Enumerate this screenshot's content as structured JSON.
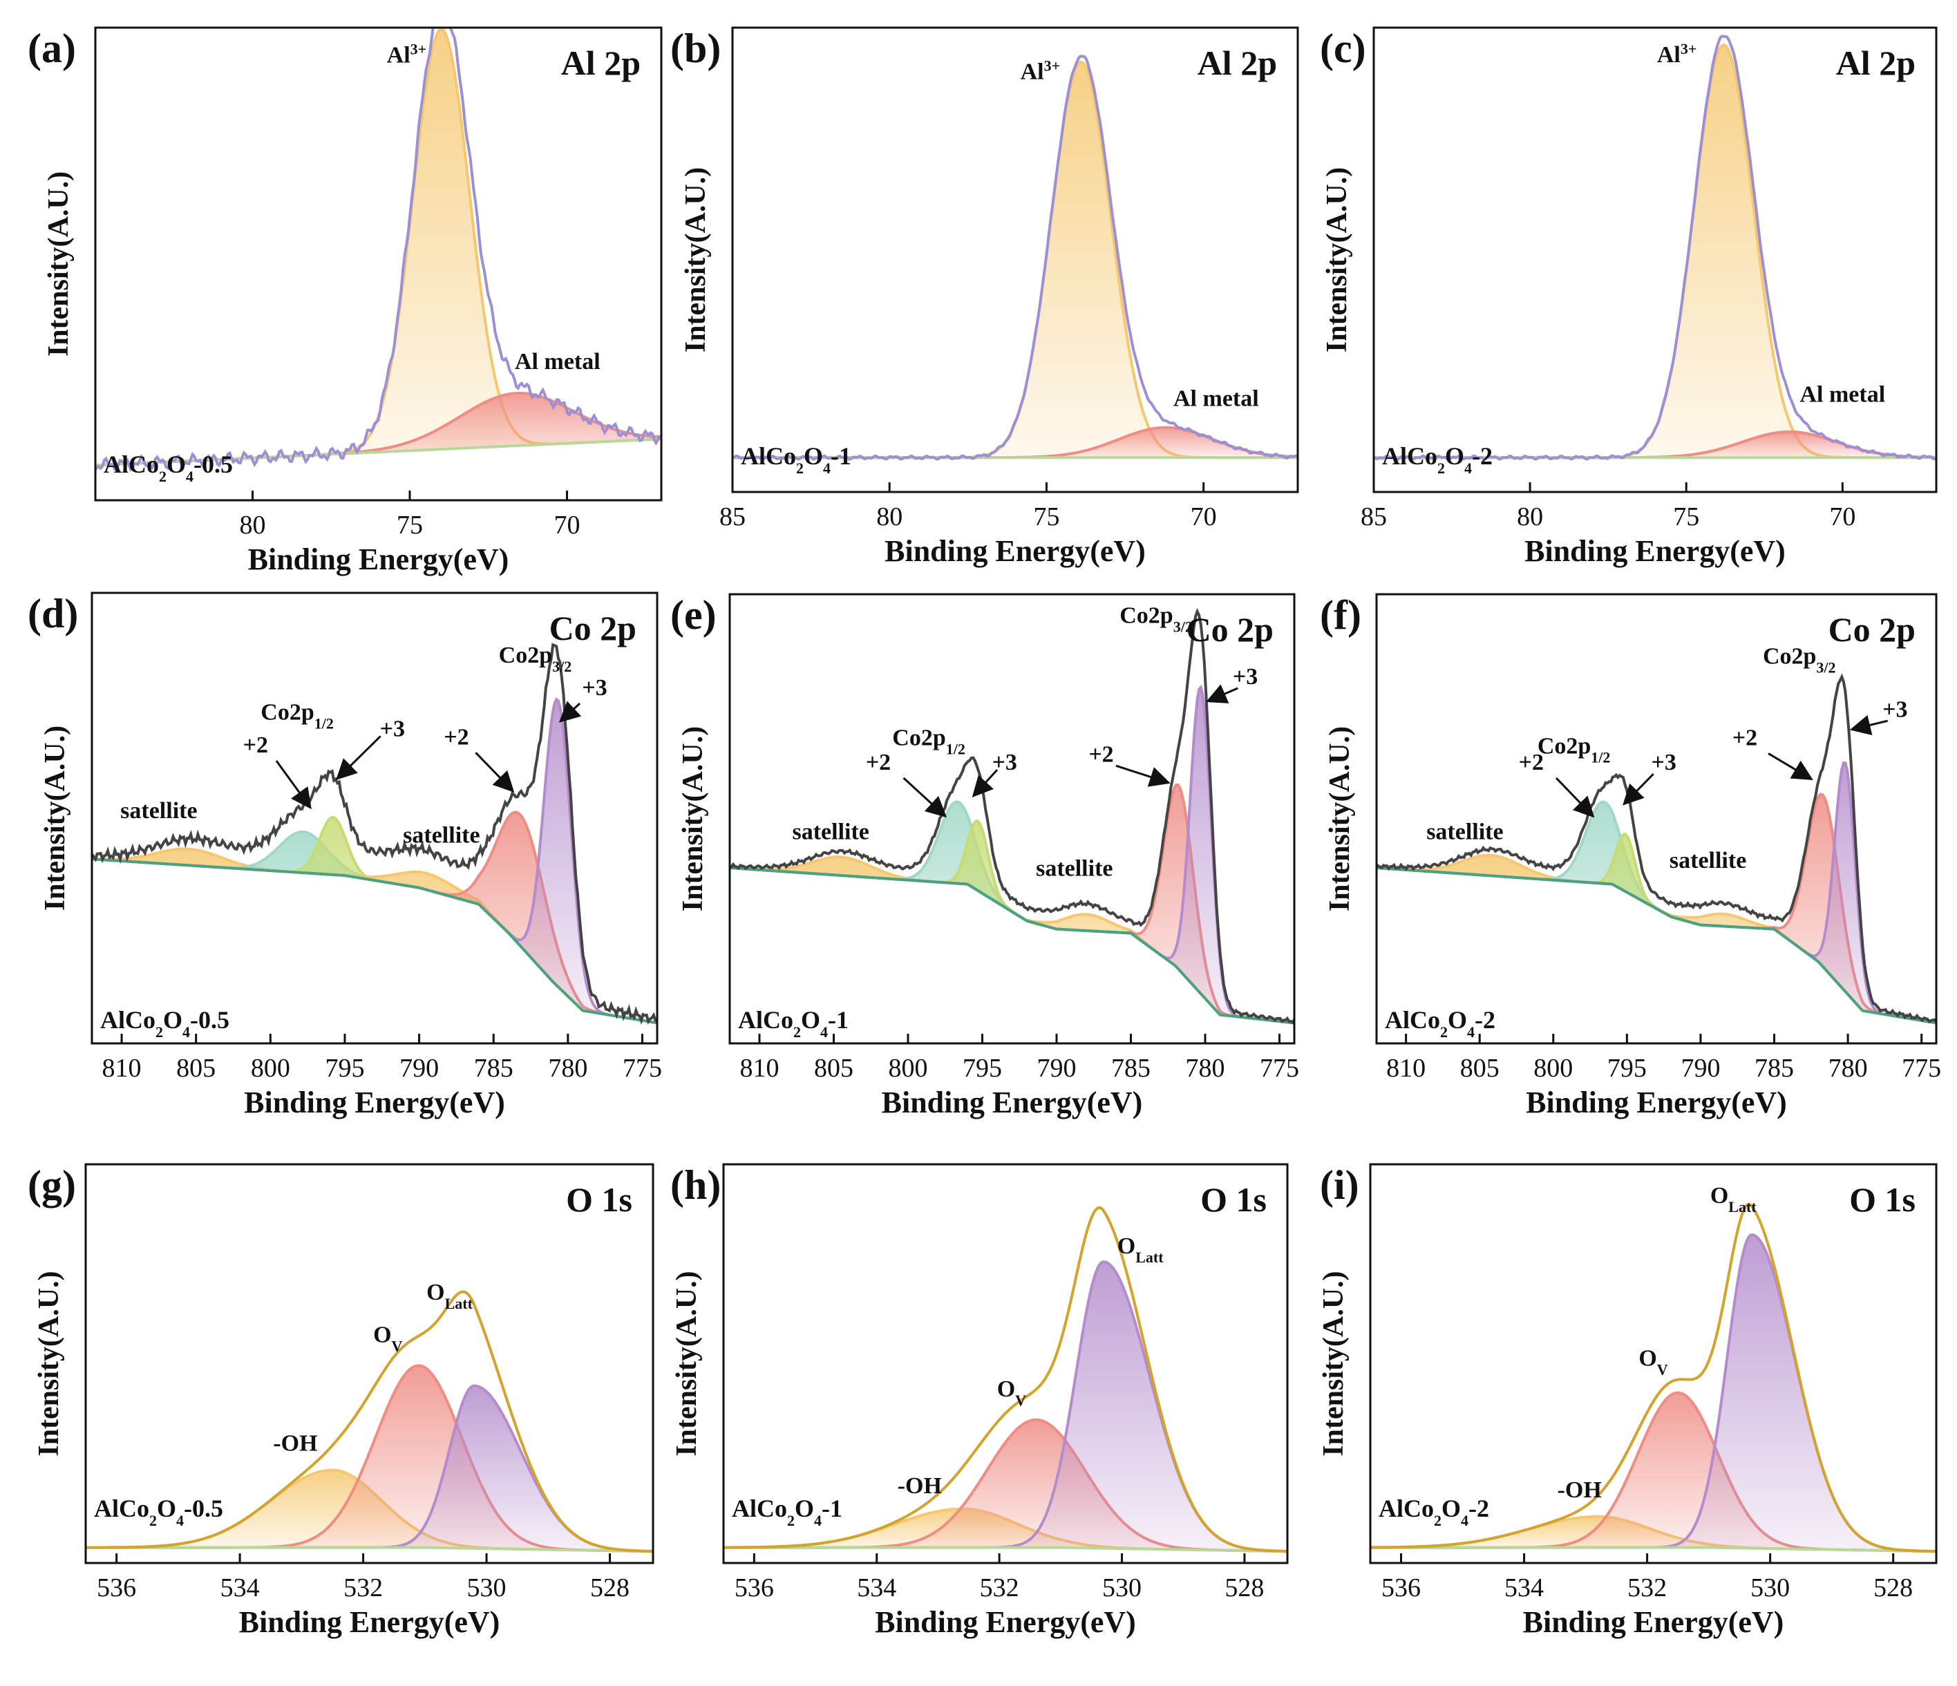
{
  "chart_data": [
    {
      "type": "area",
      "panel": "(a)",
      "title": "Al 2p",
      "sample": "AlCo2O4-0.5",
      "xlabel": "Binding Energy(eV)",
      "ylabel": "Intensity(A.U.)",
      "xlim": [
        85,
        67
      ],
      "ylim": [
        -0.08,
        1.0
      ],
      "xticks": [
        80,
        75,
        70
      ],
      "tick_labels": [
        "80",
        "75",
        "70"
      ],
      "baseline": [
        [
          85,
          0.0
        ],
        [
          67,
          0.06
        ]
      ],
      "components": [
        {
          "name": "Al3+",
          "center": 74.0,
          "height": 0.96,
          "width": 0.9,
          "color": "#f5c870"
        },
        {
          "name": "Al metal",
          "center": 71.6,
          "height": 0.12,
          "width": 1.8,
          "color": "#ef8c84"
        }
      ],
      "envelope_color": "#9d8fd6",
      "noise": 0.015,
      "annotations": [
        {
          "text": "Al",
          "sup": "3+",
          "x": 75.1,
          "y": 0.92
        },
        {
          "text": "Al metal",
          "sub": "",
          "x": 70.3,
          "y": 0.22
        }
      ]
    },
    {
      "type": "area",
      "panel": "(b)",
      "title": "Al 2p",
      "sample": "AlCo2O4-1",
      "xlabel": "Binding Energy(eV)",
      "ylabel": "Intensity(A.U.)",
      "xlim": [
        85,
        67
      ],
      "ylim": [
        -0.08,
        1.0
      ],
      "xticks": [
        85,
        80,
        75,
        70
      ],
      "tick_labels": [
        "85",
        "80",
        "75",
        "70"
      ],
      "baseline": [
        [
          85,
          0.0
        ],
        [
          67,
          0.0
        ]
      ],
      "components": [
        {
          "name": "Al3+",
          "center": 73.9,
          "height": 0.92,
          "width": 0.95,
          "color": "#f5c870"
        },
        {
          "name": "Al metal",
          "center": 71.2,
          "height": 0.07,
          "width": 1.5,
          "color": "#ef8c84"
        }
      ],
      "envelope_color": "#9d8fd6",
      "noise": 0.004,
      "annotations": [
        {
          "text": "Al",
          "sup": "3+",
          "x": 75.2,
          "y": 0.88
        },
        {
          "text": "Al metal",
          "sub": "",
          "x": 69.6,
          "y": 0.12
        }
      ]
    },
    {
      "type": "area",
      "panel": "(c)",
      "title": "Al 2p",
      "sample": "AlCo2O4-2",
      "xlabel": "Binding Energy(eV)",
      "ylabel": "Intensity(A.U.)",
      "xlim": [
        85,
        67
      ],
      "ylim": [
        -0.08,
        1.0
      ],
      "xticks": [
        85,
        80,
        75,
        70
      ],
      "tick_labels": [
        "85",
        "80",
        "75",
        "70"
      ],
      "baseline": [
        [
          85,
          0.0
        ],
        [
          67,
          0.0
        ]
      ],
      "components": [
        {
          "name": "Al3+",
          "center": 73.8,
          "height": 0.96,
          "width": 0.95,
          "color": "#f5c870"
        },
        {
          "name": "Al metal",
          "center": 71.7,
          "height": 0.06,
          "width": 1.5,
          "color": "#ef8c84"
        }
      ],
      "envelope_color": "#9d8fd6",
      "noise": 0.004,
      "annotations": [
        {
          "text": "Al",
          "sup": "3+",
          "x": 75.3,
          "y": 0.92
        },
        {
          "text": "Al metal",
          "sub": "",
          "x": 70.0,
          "y": 0.13
        }
      ]
    },
    {
      "type": "area",
      "panel": "(d)",
      "title": "Co 2p",
      "sample": "AlCo2O4-0.5",
      "xlabel": "Binding Energy(eV)",
      "ylabel": "Intensity(A.U.)",
      "xlim": [
        812,
        774
      ],
      "ylim": [
        -0.05,
        1.05
      ],
      "xticks": [
        810,
        805,
        800,
        795,
        790,
        785,
        780,
        775
      ],
      "tick_labels": [
        "810",
        "805",
        "800",
        "795",
        "790",
        "785",
        "780",
        "775"
      ],
      "baseline": [
        [
          812,
          0.4
        ],
        [
          795,
          0.36
        ],
        [
          790,
          0.33
        ],
        [
          786,
          0.29
        ],
        [
          784,
          0.22
        ],
        [
          781,
          0.1
        ],
        [
          779,
          0.03
        ],
        [
          774,
          0.0
        ]
      ],
      "components": [
        {
          "name": "satellite",
          "center": 805.5,
          "height": 0.04,
          "width": 2.2,
          "color": "#f5c870"
        },
        {
          "name": "+2",
          "center": 797.8,
          "height": 0.1,
          "width": 1.6,
          "color": "#9fd8c8"
        },
        {
          "name": "+3",
          "center": 795.8,
          "height": 0.14,
          "width": 0.9,
          "color": "#c6dc72"
        },
        {
          "name": "satellite",
          "center": 789.5,
          "height": 0.04,
          "width": 2.0,
          "color": "#f5c870"
        },
        {
          "name": "+2",
          "center": 783.2,
          "height": 0.32,
          "width": 1.6,
          "color": "#ef8c84"
        },
        {
          "name": "+3",
          "center": 780.7,
          "height": 0.7,
          "width": 0.9,
          "color": "#b48ccc"
        }
      ],
      "envelope_color": "#444444",
      "envelope_lift": 0.06,
      "noise": 0.012,
      "annotations": [
        {
          "text": "satellite",
          "x": 807.5,
          "y": 0.5
        },
        {
          "text": "+2",
          "x": 801.0,
          "y": 0.66
        },
        {
          "text": "Co2p",
          "sub": "1/2",
          "x": 798.2,
          "y": 0.74
        },
        {
          "text": "+3",
          "x": 791.8,
          "y": 0.7
        },
        {
          "text": "satellite",
          "x": 788.5,
          "y": 0.44
        },
        {
          "text": "+2",
          "x": 787.5,
          "y": 0.68
        },
        {
          "text": "Co2p",
          "sub": "3/2",
          "x": 782.2,
          "y": 0.88
        },
        {
          "text": "+3",
          "x": 778.2,
          "y": 0.8
        }
      ],
      "arrows": [
        [
          799.6,
          0.64,
          797.4,
          0.53
        ],
        [
          792.6,
          0.7,
          795.4,
          0.6
        ],
        [
          786.2,
          0.66,
          783.8,
          0.57
        ],
        [
          779.2,
          0.78,
          780.4,
          0.74
        ]
      ]
    },
    {
      "type": "area",
      "panel": "(e)",
      "title": "Co 2p",
      "sample": "AlCo2O4-1",
      "xlabel": "Binding Energy(eV)",
      "ylabel": "Intensity(A.U.)",
      "xlim": [
        812,
        774
      ],
      "ylim": [
        -0.05,
        1.05
      ],
      "xticks": [
        810,
        805,
        800,
        795,
        790,
        785,
        780,
        775
      ],
      "tick_labels": [
        "810",
        "805",
        "800",
        "795",
        "790",
        "785",
        "780",
        "775"
      ],
      "baseline": [
        [
          812,
          0.38
        ],
        [
          796,
          0.34
        ],
        [
          792,
          0.25
        ],
        [
          790,
          0.23
        ],
        [
          785,
          0.22
        ],
        [
          782,
          0.14
        ],
        [
          779,
          0.02
        ],
        [
          774,
          0.0
        ]
      ],
      "components": [
        {
          "name": "satellite",
          "center": 804.5,
          "height": 0.045,
          "width": 2.0,
          "color": "#f5c870"
        },
        {
          "name": "+2",
          "center": 796.7,
          "height": 0.2,
          "width": 1.2,
          "color": "#9fd8c8"
        },
        {
          "name": "+3",
          "center": 795.3,
          "height": 0.17,
          "width": 0.7,
          "color": "#c6dc72"
        },
        {
          "name": "satellite",
          "center": 788.0,
          "height": 0.04,
          "width": 1.6,
          "color": "#f5c870"
        },
        {
          "name": "+2",
          "center": 781.8,
          "height": 0.45,
          "width": 1.0,
          "color": "#ef8c84"
        },
        {
          "name": "+3",
          "center": 780.3,
          "height": 0.75,
          "width": 0.7,
          "color": "#b48ccc"
        }
      ],
      "envelope_color": "#444444",
      "envelope_lift": 0.03,
      "noise": 0.005,
      "annotations": [
        {
          "text": "satellite",
          "x": 805.2,
          "y": 0.45
        },
        {
          "text": "+2",
          "x": 802.0,
          "y": 0.62
        },
        {
          "text": "Co2p",
          "sub": "1/2",
          "x": 798.6,
          "y": 0.68
        },
        {
          "text": "+3",
          "x": 793.5,
          "y": 0.62
        },
        {
          "text": "satellite",
          "x": 788.8,
          "y": 0.36
        },
        {
          "text": "+2",
          "x": 787.0,
          "y": 0.64
        },
        {
          "text": "Co2p",
          "sub": "3/2",
          "x": 783.3,
          "y": 0.98
        },
        {
          "text": "+3",
          "x": 777.3,
          "y": 0.83
        }
      ],
      "arrows": [
        [
          800.3,
          0.6,
          797.6,
          0.51
        ],
        [
          794.0,
          0.62,
          795.5,
          0.56
        ],
        [
          786.0,
          0.63,
          782.6,
          0.59
        ],
        [
          777.8,
          0.82,
          779.7,
          0.79
        ]
      ]
    },
    {
      "type": "area",
      "panel": "(f)",
      "title": "Co 2p",
      "sample": "AlCo2O4-2",
      "xlabel": "Binding Energy(eV)",
      "ylabel": "Intensity(A.U.)",
      "xlim": [
        812,
        774
      ],
      "ylim": [
        -0.05,
        1.05
      ],
      "xticks": [
        810,
        805,
        800,
        795,
        790,
        785,
        780,
        775
      ],
      "tick_labels": [
        "810",
        "805",
        "800",
        "795",
        "790",
        "785",
        "780",
        "775"
      ],
      "baseline": [
        [
          812,
          0.38
        ],
        [
          796,
          0.34
        ],
        [
          792,
          0.26
        ],
        [
          790,
          0.24
        ],
        [
          785,
          0.23
        ],
        [
          782,
          0.15
        ],
        [
          779,
          0.03
        ],
        [
          774,
          0.0
        ]
      ],
      "components": [
        {
          "name": "satellite",
          "center": 804.2,
          "height": 0.05,
          "width": 2.0,
          "color": "#f5c870"
        },
        {
          "name": "+2",
          "center": 796.6,
          "height": 0.2,
          "width": 1.2,
          "color": "#9fd8c8"
        },
        {
          "name": "+3",
          "center": 795.1,
          "height": 0.14,
          "width": 0.65,
          "color": "#c6dc72"
        },
        {
          "name": "satellite",
          "center": 788.5,
          "height": 0.03,
          "width": 1.6,
          "color": "#f5c870"
        },
        {
          "name": "+2",
          "center": 781.7,
          "height": 0.42,
          "width": 1.1,
          "color": "#ef8c84"
        },
        {
          "name": "+3",
          "center": 780.2,
          "height": 0.56,
          "width": 0.7,
          "color": "#b48ccc"
        }
      ],
      "envelope_color": "#444444",
      "envelope_lift": 0.03,
      "noise": 0.005,
      "annotations": [
        {
          "text": "satellite",
          "x": 806.0,
          "y": 0.45
        },
        {
          "text": "+2",
          "x": 801.5,
          "y": 0.62
        },
        {
          "text": "Co2p",
          "sub": "1/2",
          "x": 798.6,
          "y": 0.66
        },
        {
          "text": "+3",
          "x": 792.5,
          "y": 0.62
        },
        {
          "text": "satellite",
          "x": 789.5,
          "y": 0.38
        },
        {
          "text": "+2",
          "x": 787.0,
          "y": 0.68
        },
        {
          "text": "Co2p",
          "sub": "3/2",
          "x": 783.3,
          "y": 0.88
        },
        {
          "text": "+3",
          "x": 776.8,
          "y": 0.75
        }
      ],
      "arrows": [
        [
          799.8,
          0.6,
          797.4,
          0.51
        ],
        [
          793.2,
          0.61,
          795.1,
          0.54
        ],
        [
          785.4,
          0.66,
          782.6,
          0.6
        ],
        [
          777.3,
          0.74,
          779.6,
          0.72
        ]
      ]
    },
    {
      "type": "area",
      "panel": "(g)",
      "title": "O 1s",
      "sample": "AlCo2O4-0.5",
      "xlabel": "Binding Energy(eV)",
      "ylabel": "Intensity(A.U.)",
      "xlim": [
        536.5,
        527.3
      ],
      "ylim": [
        -0.03,
        1.0
      ],
      "xticks": [
        536,
        534,
        532,
        530,
        528
      ],
      "tick_labels": [
        "536",
        "534",
        "532",
        "530",
        "528"
      ],
      "baseline": [
        [
          536.5,
          0.01
        ],
        [
          531,
          0.01
        ],
        [
          527.3,
          0.0
        ]
      ],
      "components": [
        {
          "name": "-OH",
          "center": 532.5,
          "height": 0.2,
          "width": 0.8,
          "wl": 1.0,
          "color": "#f5c870"
        },
        {
          "name": "OV",
          "center": 531.1,
          "height": 0.47,
          "width": 0.7,
          "color": "#ef8c84"
        },
        {
          "name": "OLatt",
          "center": 530.2,
          "height": 0.42,
          "width": 0.4,
          "wr": 0.75,
          "color": "#b48ccc"
        }
      ],
      "envelope_color": "#d4a32c",
      "noise": 0.0,
      "annotations": [
        {
          "text": "O",
          "sub": "Latt",
          "x": 530.6,
          "y": 0.65
        },
        {
          "text": "O",
          "sub": "V",
          "x": 531.6,
          "y": 0.54
        },
        {
          "text": "-OH",
          "x": 533.1,
          "y": 0.26
        }
      ]
    },
    {
      "type": "area",
      "panel": "(h)",
      "title": "O 1s",
      "sample": "AlCo2O4-1",
      "xlabel": "Binding Energy(eV)",
      "ylabel": "Intensity(A.U.)",
      "xlim": [
        536.5,
        527.3
      ],
      "ylim": [
        -0.03,
        1.0
      ],
      "xticks": [
        536,
        534,
        532,
        530,
        528
      ],
      "tick_labels": [
        "536",
        "534",
        "532",
        "530",
        "528"
      ],
      "baseline": [
        [
          536.5,
          0.01
        ],
        [
          531,
          0.01
        ],
        [
          527.3,
          0.0
        ]
      ],
      "components": [
        {
          "name": "-OH",
          "center": 532.6,
          "height": 0.1,
          "width": 0.9,
          "wl": 1.1,
          "color": "#f5c870"
        },
        {
          "name": "OV",
          "center": 531.4,
          "height": 0.33,
          "width": 0.8,
          "color": "#ef8c84"
        },
        {
          "name": "OLatt",
          "center": 530.3,
          "height": 0.74,
          "width": 0.45,
          "wr": 0.75,
          "color": "#b48ccc"
        }
      ],
      "envelope_color": "#d4a32c",
      "noise": 0.0,
      "annotations": [
        {
          "text": "O",
          "sub": "Latt",
          "x": 529.7,
          "y": 0.77
        },
        {
          "text": "O",
          "sub": "V",
          "x": 531.8,
          "y": 0.4
        },
        {
          "text": "-OH",
          "x": 533.3,
          "y": 0.15
        }
      ]
    },
    {
      "type": "area",
      "panel": "(i)",
      "title": "O 1s",
      "sample": "AlCo2O4-2",
      "xlabel": "Binding Energy(eV)",
      "ylabel": "Intensity(A.U.)",
      "xlim": [
        536.5,
        527.3
      ],
      "ylim": [
        -0.03,
        1.0
      ],
      "xticks": [
        536,
        534,
        532,
        530,
        528
      ],
      "tick_labels": [
        "536",
        "534",
        "532",
        "530",
        "528"
      ],
      "baseline": [
        [
          536.5,
          0.01
        ],
        [
          531,
          0.01
        ],
        [
          527.3,
          0.0
        ]
      ],
      "components": [
        {
          "name": "-OH",
          "center": 532.8,
          "height": 0.08,
          "width": 0.85,
          "wl": 1.1,
          "color": "#f5c870"
        },
        {
          "name": "OV",
          "center": 531.5,
          "height": 0.4,
          "width": 0.65,
          "color": "#ef8c84"
        },
        {
          "name": "OLatt",
          "center": 530.3,
          "height": 0.81,
          "width": 0.4,
          "wr": 0.7,
          "color": "#b48ccc"
        }
      ],
      "envelope_color": "#d4a32c",
      "noise": 0.0,
      "annotations": [
        {
          "text": "O",
          "sub": "Latt",
          "x": 530.6,
          "y": 0.9
        },
        {
          "text": "O",
          "sub": "V",
          "x": 531.9,
          "y": 0.48
        },
        {
          "text": "-OH",
          "x": 533.1,
          "y": 0.14
        }
      ]
    }
  ]
}
